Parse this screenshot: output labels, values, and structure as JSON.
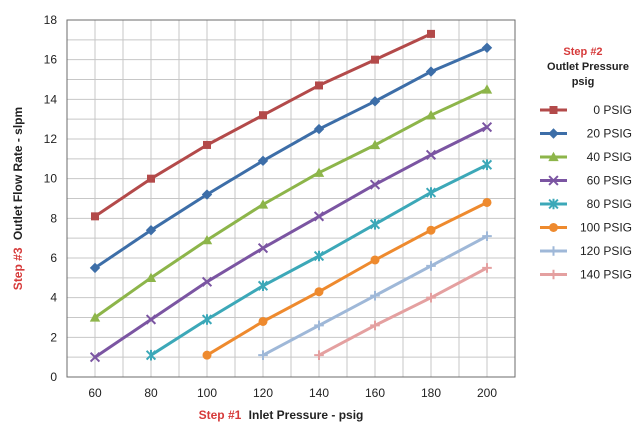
{
  "chart_data": {
    "type": "line",
    "xlabel": {
      "step": "Step #1",
      "text": "Inlet Pressure  - psig"
    },
    "ylabel": {
      "step": "Step #3",
      "text": "Outlet Flow Rate  - slpm"
    },
    "xlim": [
      50,
      210
    ],
    "ylim": [
      0,
      18
    ],
    "xticks": [
      60,
      80,
      100,
      120,
      140,
      160,
      180,
      200
    ],
    "yticks": [
      0,
      2,
      4,
      6,
      8,
      10,
      12,
      14,
      16,
      18
    ],
    "grid": true,
    "legend_position": "right",
    "legend_title": {
      "step": "Step #2",
      "line1": "Outlet Pressure",
      "line2": "psig"
    },
    "series": [
      {
        "name": "0 PSIG",
        "color": "#b34a4a",
        "marker": "square",
        "x": [
          60,
          80,
          100,
          120,
          140,
          160,
          180
        ],
        "y": [
          8.1,
          10.0,
          11.7,
          13.2,
          14.7,
          16.0,
          17.3
        ]
      },
      {
        "name": "20 PSIG",
        "color": "#3d6ea8",
        "marker": "diamond",
        "x": [
          60,
          80,
          100,
          120,
          140,
          160,
          180,
          200
        ],
        "y": [
          5.5,
          7.4,
          9.2,
          10.9,
          12.5,
          13.9,
          15.4,
          16.6
        ]
      },
      {
        "name": "40 PSIG",
        "color": "#8db54a",
        "marker": "triangle",
        "x": [
          60,
          80,
          100,
          120,
          140,
          160,
          180,
          200
        ],
        "y": [
          3.0,
          5.0,
          6.9,
          8.7,
          10.3,
          11.7,
          13.2,
          14.5
        ]
      },
      {
        "name": "60 PSIG",
        "color": "#7b55a2",
        "marker": "x",
        "x": [
          60,
          80,
          100,
          120,
          140,
          160,
          180,
          200
        ],
        "y": [
          1.0,
          2.9,
          4.8,
          6.5,
          8.1,
          9.7,
          11.2,
          12.6
        ]
      },
      {
        "name": "80 PSIG",
        "color": "#3ca8b8",
        "marker": "star",
        "x": [
          80,
          100,
          120,
          140,
          160,
          180,
          200
        ],
        "y": [
          1.1,
          2.9,
          4.6,
          6.1,
          7.7,
          9.3,
          10.7
        ]
      },
      {
        "name": "100 PSIG",
        "color": "#ee8a2e",
        "marker": "circle",
        "x": [
          100,
          120,
          140,
          160,
          180,
          200
        ],
        "y": [
          1.1,
          2.8,
          4.3,
          5.9,
          7.4,
          8.8
        ]
      },
      {
        "name": "120 PSIG",
        "color": "#9fb8d8",
        "marker": "plus",
        "x": [
          120,
          140,
          160,
          180,
          200
        ],
        "y": [
          1.1,
          2.6,
          4.1,
          5.6,
          7.1
        ]
      },
      {
        "name": "140 PSIG",
        "color": "#e4a0a0",
        "marker": "plus",
        "x": [
          140,
          160,
          180,
          200
        ],
        "y": [
          1.1,
          2.6,
          4.0,
          5.5
        ]
      }
    ]
  }
}
